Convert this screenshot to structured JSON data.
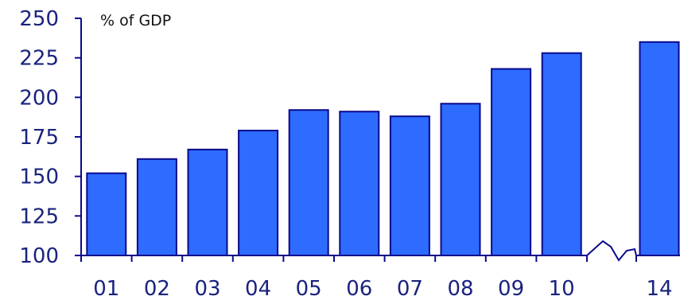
{
  "chart_data": {
    "type": "bar",
    "unit_label": "% of  GDP",
    "categories": [
      "01",
      "02",
      "03",
      "04",
      "05",
      "06",
      "07",
      "08",
      "09",
      "10",
      "14"
    ],
    "values": [
      152,
      161,
      167,
      179,
      192,
      191,
      188,
      196,
      218,
      228,
      235
    ],
    "ylim": [
      100,
      250
    ],
    "yticks": [
      "100",
      "125",
      "150",
      "175",
      "200",
      "225",
      "250"
    ],
    "axis_break_between": [
      "10",
      "14"
    ],
    "grid": false,
    "legend": "none",
    "bar_color": "#2e6bff",
    "bar_edge_color": "#0a0a8a",
    "tick_label_color": "#1a237e"
  }
}
